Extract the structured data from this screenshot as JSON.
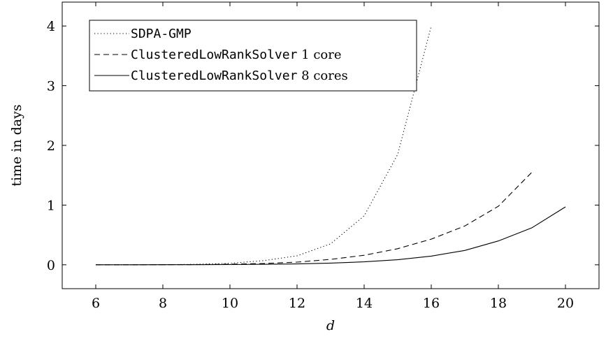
{
  "chart_data": {
    "type": "line",
    "xlabel": "d",
    "ylabel": "time in days",
    "xlim": [
      5,
      21
    ],
    "ylim": [
      -0.4,
      4.4
    ],
    "xticks": [
      6,
      8,
      10,
      12,
      14,
      16,
      18,
      20
    ],
    "yticks": [
      0,
      1,
      2,
      3,
      4
    ],
    "grid": false,
    "legend_position": "top-left",
    "series": [
      {
        "name_mono": "SDPA-GMP",
        "name_text": "",
        "style": "dotted",
        "x": [
          6,
          7,
          8,
          9,
          10,
          11,
          12,
          13,
          14,
          15,
          16
        ],
        "y": [
          0,
          0,
          0.002,
          0.008,
          0.025,
          0.07,
          0.15,
          0.35,
          0.82,
          1.85,
          4.0
        ]
      },
      {
        "name_mono": "ClusteredLowRankSolver",
        "name_text": " 1 core",
        "style": "dashed",
        "x": [
          6,
          7,
          8,
          9,
          10,
          11,
          12,
          13,
          14,
          15,
          16,
          17,
          18,
          19
        ],
        "y": [
          0,
          0,
          0.002,
          0.004,
          0.01,
          0.022,
          0.045,
          0.09,
          0.16,
          0.27,
          0.43,
          0.65,
          0.98,
          1.55
        ]
      },
      {
        "name_mono": "ClusteredLowRankSolver",
        "name_text": " 8 cores",
        "style": "solid",
        "x": [
          6,
          7,
          8,
          9,
          10,
          11,
          12,
          13,
          14,
          15,
          16,
          17,
          18,
          19,
          20
        ],
        "y": [
          0,
          0,
          0.001,
          0.002,
          0.004,
          0.008,
          0.015,
          0.028,
          0.05,
          0.085,
          0.145,
          0.24,
          0.4,
          0.62,
          0.97
        ]
      }
    ]
  }
}
